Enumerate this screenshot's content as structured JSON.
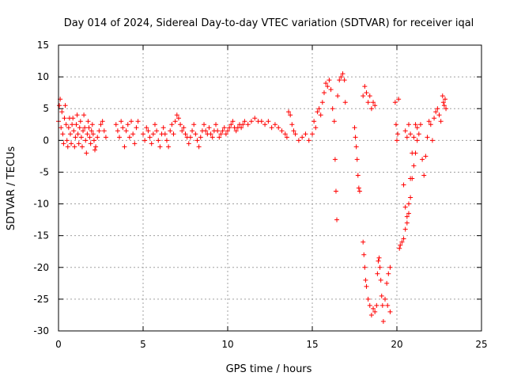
{
  "chart_data": {
    "type": "scatter",
    "title": "Day 014 of 2024, Sidereal Day-to-day VTEC variation (SDTVAR) for receiver iqal",
    "xlabel": "GPS time / hours",
    "ylabel": "SDTVAR / TECUs",
    "xlim": [
      0,
      25
    ],
    "ylim": [
      -30,
      15
    ],
    "xticks": [
      0,
      5,
      10,
      15,
      20,
      25
    ],
    "yticks": [
      15,
      10,
      5,
      0,
      -5,
      -10,
      -15,
      -20,
      -25,
      -30
    ],
    "grid": true,
    "marker": "+",
    "colors": {
      "series": "#ff0000",
      "grid": "#a0a0a0",
      "axis": "#000000"
    },
    "series": [
      {
        "name": "SDTVAR",
        "points": [
          [
            0.0,
            3.0
          ],
          [
            0.05,
            5.5
          ],
          [
            0.1,
            6.5
          ],
          [
            0.15,
            2.0
          ],
          [
            0.2,
            4.5
          ],
          [
            0.25,
            1.0
          ],
          [
            0.3,
            -0.5
          ],
          [
            0.35,
            3.5
          ],
          [
            0.4,
            5.5
          ],
          [
            0.45,
            2.5
          ],
          [
            0.5,
            0.0
          ],
          [
            0.55,
            -1.0
          ],
          [
            0.6,
            2.0
          ],
          [
            0.65,
            3.5
          ],
          [
            0.7,
            1.0
          ],
          [
            0.75,
            -0.5
          ],
          [
            0.8,
            2.5
          ],
          [
            0.85,
            3.5
          ],
          [
            0.9,
            1.5
          ],
          [
            0.95,
            -1.0
          ],
          [
            1.0,
            0.5
          ],
          [
            1.05,
            2.5
          ],
          [
            1.1,
            4.0
          ],
          [
            1.15,
            1.0
          ],
          [
            1.2,
            -0.5
          ],
          [
            1.25,
            2.0
          ],
          [
            1.3,
            3.0
          ],
          [
            1.35,
            0.5
          ],
          [
            1.4,
            -1.0
          ],
          [
            1.45,
            1.5
          ],
          [
            1.5,
            4.0
          ],
          [
            1.55,
            2.0
          ],
          [
            1.6,
            0.0
          ],
          [
            1.65,
            -2.0
          ],
          [
            1.7,
            1.0
          ],
          [
            1.75,
            3.0
          ],
          [
            1.8,
            2.0
          ],
          [
            1.85,
            0.5
          ],
          [
            1.9,
            -0.5
          ],
          [
            1.95,
            1.5
          ],
          [
            2.0,
            2.5
          ],
          [
            2.05,
            1.0
          ],
          [
            2.1,
            0.0
          ],
          [
            2.15,
            -1.5
          ],
          [
            2.2,
            -1.0
          ],
          [
            2.3,
            0.5
          ],
          [
            2.4,
            1.5
          ],
          [
            2.5,
            2.5
          ],
          [
            2.6,
            3.0
          ],
          [
            2.7,
            1.5
          ],
          [
            2.8,
            0.5
          ],
          [
            3.4,
            2.5
          ],
          [
            3.5,
            1.5
          ],
          [
            3.6,
            0.5
          ],
          [
            3.7,
            3.0
          ],
          [
            3.8,
            2.0
          ],
          [
            3.9,
            -1.0
          ],
          [
            4.0,
            1.5
          ],
          [
            4.1,
            2.5
          ],
          [
            4.2,
            0.5
          ],
          [
            4.3,
            3.0
          ],
          [
            4.4,
            1.0
          ],
          [
            4.5,
            -0.5
          ],
          [
            4.6,
            2.0
          ],
          [
            4.7,
            3.0
          ],
          [
            5.0,
            1.0
          ],
          [
            5.1,
            0.0
          ],
          [
            5.2,
            2.0
          ],
          [
            5.3,
            1.5
          ],
          [
            5.4,
            0.5
          ],
          [
            5.5,
            -0.5
          ],
          [
            5.6,
            1.0
          ],
          [
            5.7,
            2.5
          ],
          [
            5.8,
            1.5
          ],
          [
            5.9,
            0.0
          ],
          [
            6.0,
            -1.0
          ],
          [
            6.1,
            1.0
          ],
          [
            6.2,
            2.0
          ],
          [
            6.3,
            1.0
          ],
          [
            6.4,
            0.0
          ],
          [
            6.5,
            -1.0
          ],
          [
            6.6,
            1.5
          ],
          [
            6.7,
            2.5
          ],
          [
            6.8,
            1.0
          ],
          [
            6.9,
            3.0
          ],
          [
            7.0,
            4.0
          ],
          [
            7.1,
            3.5
          ],
          [
            7.2,
            2.5
          ],
          [
            7.3,
            1.5
          ],
          [
            7.4,
            2.0
          ],
          [
            7.5,
            1.0
          ],
          [
            7.6,
            0.5
          ],
          [
            7.7,
            -0.5
          ],
          [
            7.8,
            0.5
          ],
          [
            7.9,
            1.5
          ],
          [
            8.0,
            2.5
          ],
          [
            8.1,
            1.0
          ],
          [
            8.2,
            0.0
          ],
          [
            8.3,
            -1.0
          ],
          [
            8.4,
            0.5
          ],
          [
            8.5,
            1.5
          ],
          [
            8.6,
            2.5
          ],
          [
            8.7,
            1.5
          ],
          [
            8.8,
            1.0
          ],
          [
            8.9,
            2.0
          ],
          [
            9.0,
            1.0
          ],
          [
            9.1,
            0.5
          ],
          [
            9.2,
            1.5
          ],
          [
            9.3,
            2.5
          ],
          [
            9.4,
            1.5
          ],
          [
            9.5,
            0.5
          ],
          [
            9.6,
            1.0
          ],
          [
            9.7,
            1.5
          ],
          [
            9.8,
            2.0
          ],
          [
            9.9,
            1.0
          ],
          [
            10.0,
            1.5
          ],
          [
            10.1,
            2.0
          ],
          [
            10.2,
            2.5
          ],
          [
            10.3,
            3.0
          ],
          [
            10.4,
            2.0
          ],
          [
            10.5,
            1.5
          ],
          [
            10.6,
            2.0
          ],
          [
            10.7,
            2.5
          ],
          [
            10.8,
            2.0
          ],
          [
            10.9,
            2.5
          ],
          [
            11.0,
            3.0
          ],
          [
            11.2,
            2.5
          ],
          [
            11.4,
            3.0
          ],
          [
            11.6,
            3.5
          ],
          [
            11.8,
            3.0
          ],
          [
            12.0,
            3.0
          ],
          [
            12.2,
            2.5
          ],
          [
            12.4,
            3.0
          ],
          [
            12.6,
            2.0
          ],
          [
            12.8,
            2.5
          ],
          [
            13.0,
            2.0
          ],
          [
            13.2,
            1.5
          ],
          [
            13.4,
            1.0
          ],
          [
            13.5,
            0.5
          ],
          [
            13.6,
            4.5
          ],
          [
            13.7,
            4.0
          ],
          [
            13.8,
            2.5
          ],
          [
            13.9,
            1.5
          ],
          [
            14.0,
            1.0
          ],
          [
            14.2,
            0.0
          ],
          [
            14.4,
            0.5
          ],
          [
            14.6,
            1.0
          ],
          [
            14.8,
            0.0
          ],
          [
            15.0,
            1.0
          ],
          [
            15.1,
            3.0
          ],
          [
            15.2,
            2.0
          ],
          [
            15.3,
            4.5
          ],
          [
            15.4,
            5.0
          ],
          [
            15.5,
            4.0
          ],
          [
            15.6,
            6.0
          ],
          [
            15.7,
            7.5
          ],
          [
            15.8,
            9.0
          ],
          [
            15.9,
            8.5
          ],
          [
            16.0,
            9.5
          ],
          [
            16.1,
            8.0
          ],
          [
            16.2,
            5.0
          ],
          [
            16.3,
            3.0
          ],
          [
            16.35,
            -3.0
          ],
          [
            16.4,
            -8.0
          ],
          [
            16.45,
            -12.5
          ],
          [
            16.5,
            7.0
          ],
          [
            16.6,
            9.5
          ],
          [
            16.7,
            10.0
          ],
          [
            16.8,
            10.5
          ],
          [
            16.9,
            9.5
          ],
          [
            16.95,
            6.0
          ],
          [
            17.5,
            2.0
          ],
          [
            17.55,
            0.5
          ],
          [
            17.6,
            -1.0
          ],
          [
            17.65,
            -3.0
          ],
          [
            17.7,
            -5.5
          ],
          [
            17.75,
            -7.5
          ],
          [
            17.8,
            -8.0
          ],
          [
            18.0,
            7.0
          ],
          [
            18.1,
            8.5
          ],
          [
            18.2,
            7.5
          ],
          [
            18.3,
            6.0
          ],
          [
            18.4,
            7.0
          ],
          [
            18.5,
            5.0
          ],
          [
            18.6,
            6.0
          ],
          [
            18.7,
            5.5
          ],
          [
            18.0,
            -16.0
          ],
          [
            18.05,
            -18.0
          ],
          [
            18.1,
            -20.0
          ],
          [
            18.15,
            -22.0
          ],
          [
            18.2,
            -23.0
          ],
          [
            18.3,
            -25.0
          ],
          [
            18.4,
            -26.0
          ],
          [
            18.5,
            -27.5
          ],
          [
            18.6,
            -26.5
          ],
          [
            18.7,
            -27.0
          ],
          [
            18.8,
            -26.0
          ],
          [
            18.85,
            -21.0
          ],
          [
            18.9,
            -19.0
          ],
          [
            18.95,
            -18.5
          ],
          [
            19.0,
            -20.0
          ],
          [
            19.05,
            -22.0
          ],
          [
            19.1,
            -24.5
          ],
          [
            19.15,
            -26.0
          ],
          [
            19.2,
            -28.5
          ],
          [
            19.3,
            -25.0
          ],
          [
            19.4,
            -22.5
          ],
          [
            19.5,
            -21.0
          ],
          [
            19.6,
            -20.0
          ],
          [
            19.45,
            -26.0
          ],
          [
            19.6,
            -27.0
          ],
          [
            19.9,
            6.0
          ],
          [
            19.95,
            2.5
          ],
          [
            20.0,
            0.0
          ],
          [
            20.05,
            1.0
          ],
          [
            20.1,
            6.5
          ],
          [
            20.15,
            -17.0
          ],
          [
            20.2,
            -16.5
          ],
          [
            20.3,
            -16.0
          ],
          [
            20.4,
            -15.5
          ],
          [
            20.5,
            -14.0
          ],
          [
            20.6,
            -13.0
          ],
          [
            20.7,
            -11.5
          ],
          [
            20.8,
            -9.0
          ],
          [
            20.9,
            -6.0
          ],
          [
            21.0,
            -4.0
          ],
          [
            21.1,
            -2.0
          ],
          [
            21.2,
            0.0
          ],
          [
            21.3,
            1.0
          ],
          [
            20.4,
            -7.0
          ],
          [
            20.5,
            -10.5
          ],
          [
            20.6,
            -12.0
          ],
          [
            20.7,
            -10.0
          ],
          [
            20.8,
            -6.0
          ],
          [
            20.9,
            -2.0
          ],
          [
            21.0,
            0.5
          ],
          [
            21.1,
            2.5
          ],
          [
            20.5,
            1.5
          ],
          [
            20.6,
            0.5
          ],
          [
            20.7,
            2.5
          ],
          [
            20.8,
            1.0
          ],
          [
            21.2,
            2.0
          ],
          [
            21.4,
            2.5
          ],
          [
            21.5,
            -3.0
          ],
          [
            21.6,
            -5.5
          ],
          [
            21.7,
            -2.5
          ],
          [
            21.8,
            0.5
          ],
          [
            21.9,
            3.0
          ],
          [
            22.0,
            2.5
          ],
          [
            22.1,
            0.0
          ],
          [
            22.2,
            3.5
          ],
          [
            22.3,
            4.5
          ],
          [
            22.4,
            5.0
          ],
          [
            22.5,
            4.0
          ],
          [
            22.6,
            3.0
          ],
          [
            22.7,
            7.0
          ],
          [
            22.75,
            6.0
          ],
          [
            22.8,
            5.5
          ],
          [
            22.85,
            6.5
          ],
          [
            22.9,
            5.0
          ]
        ]
      }
    ]
  }
}
